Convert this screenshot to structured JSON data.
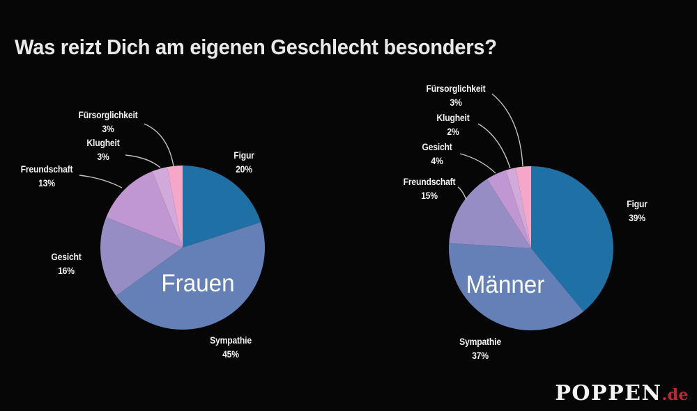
{
  "title": "Was reizt Dich am eigenen Geschlecht besonders?",
  "colors": {
    "background": "#060606",
    "title_text": "#e9e9e9",
    "label_text": "#f2f2f2",
    "leader_line": "#d9d9d9",
    "logo_white": "#f4f4f4",
    "logo_red": "#c8242e"
  },
  "palette": [
    "#1f70a4",
    "#6480b7",
    "#968dc4",
    "#c197d2",
    "#d2a9db",
    "#f6a7c8"
  ],
  "chart_data": [
    {
      "type": "pie",
      "title": "Frauen",
      "start_angle_deg": 0,
      "direction": "clockwise",
      "slices": [
        {
          "label": "Figur",
          "value": 20,
          "pct": "20%"
        },
        {
          "label": "Sympathie",
          "value": 45,
          "pct": "45%"
        },
        {
          "label": "Gesicht",
          "value": 16,
          "pct": "16%"
        },
        {
          "label": "Freundschaft",
          "value": 13,
          "pct": "13%"
        },
        {
          "label": "Klugheit",
          "value": 3,
          "pct": "3%"
        },
        {
          "label": "Fürsorglichkeit",
          "value": 3,
          "pct": "3%"
        }
      ]
    },
    {
      "type": "pie",
      "title": "Männer",
      "start_angle_deg": 0,
      "direction": "clockwise",
      "slices": [
        {
          "label": "Figur",
          "value": 39,
          "pct": "39%"
        },
        {
          "label": "Sympathie",
          "value": 37,
          "pct": "37%"
        },
        {
          "label": "Freundschaft",
          "value": 15,
          "pct": "15%"
        },
        {
          "label": "Gesicht",
          "value": 4,
          "pct": "4%"
        },
        {
          "label": "Klugheit",
          "value": 2,
          "pct": "2%"
        },
        {
          "label": "Fürsorglichkeit",
          "value": 3,
          "pct": "3%"
        }
      ]
    }
  ],
  "logo": {
    "name": "POPPEN",
    "tld": ".de"
  }
}
